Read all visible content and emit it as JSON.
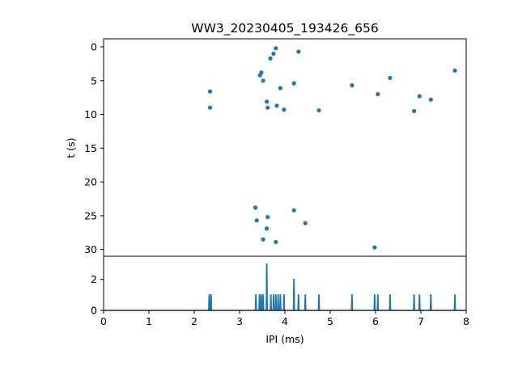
{
  "chart_data": [
    {
      "type": "scatter",
      "title": "WW3_20230405_193426_656",
      "xlabel": "",
      "ylabel": "t (s)",
      "xlim": [
        0,
        8
      ],
      "ylim": [
        31,
        -1.2
      ],
      "y_inverted": true,
      "y_ticks": [
        0,
        5,
        10,
        15,
        20,
        25,
        30
      ],
      "color": "#1f77b4",
      "points": [
        [
          3.8,
          0.2
        ],
        [
          4.3,
          0.7
        ],
        [
          3.75,
          1.0
        ],
        [
          3.68,
          1.7
        ],
        [
          7.75,
          3.5
        ],
        [
          3.48,
          3.8
        ],
        [
          3.45,
          4.2
        ],
        [
          6.32,
          4.6
        ],
        [
          3.52,
          5.0
        ],
        [
          4.2,
          5.4
        ],
        [
          5.48,
          5.7
        ],
        [
          3.9,
          6.1
        ],
        [
          2.35,
          6.6
        ],
        [
          6.05,
          7.0
        ],
        [
          6.97,
          7.3
        ],
        [
          7.22,
          7.8
        ],
        [
          3.6,
          8.1
        ],
        [
          3.82,
          8.7
        ],
        [
          2.35,
          9.0
        ],
        [
          3.62,
          9.0
        ],
        [
          3.98,
          9.3
        ],
        [
          4.75,
          9.4
        ],
        [
          6.85,
          9.5
        ],
        [
          3.35,
          23.8
        ],
        [
          4.2,
          24.2
        ],
        [
          3.62,
          25.2
        ],
        [
          3.38,
          25.7
        ],
        [
          4.45,
          26.1
        ],
        [
          3.6,
          26.9
        ],
        [
          3.52,
          28.5
        ],
        [
          3.8,
          28.9
        ],
        [
          5.98,
          29.7
        ]
      ]
    },
    {
      "type": "line",
      "xlabel": "IPI (ms)",
      "ylabel": "",
      "xlim": [
        0,
        8
      ],
      "ylim": [
        0,
        3.5
      ],
      "x_ticks": [
        0,
        1,
        2,
        3,
        4,
        5,
        6,
        7,
        8
      ],
      "y_ticks": [
        0,
        2
      ],
      "color": "#1f77b4",
      "peaks": [
        [
          2.33,
          1
        ],
        [
          2.37,
          1
        ],
        [
          3.36,
          1
        ],
        [
          3.44,
          1
        ],
        [
          3.48,
          1
        ],
        [
          3.52,
          1
        ],
        [
          3.6,
          3
        ],
        [
          3.69,
          1
        ],
        [
          3.75,
          1
        ],
        [
          3.8,
          1
        ],
        [
          3.85,
          1
        ],
        [
          3.9,
          1
        ],
        [
          3.98,
          1
        ],
        [
          4.2,
          2
        ],
        [
          4.3,
          1
        ],
        [
          4.45,
          1
        ],
        [
          4.75,
          1
        ],
        [
          5.48,
          1
        ],
        [
          5.98,
          1
        ],
        [
          6.05,
          1
        ],
        [
          6.32,
          1
        ],
        [
          6.85,
          1
        ],
        [
          6.97,
          1
        ],
        [
          7.22,
          1
        ],
        [
          7.75,
          1
        ]
      ]
    }
  ]
}
